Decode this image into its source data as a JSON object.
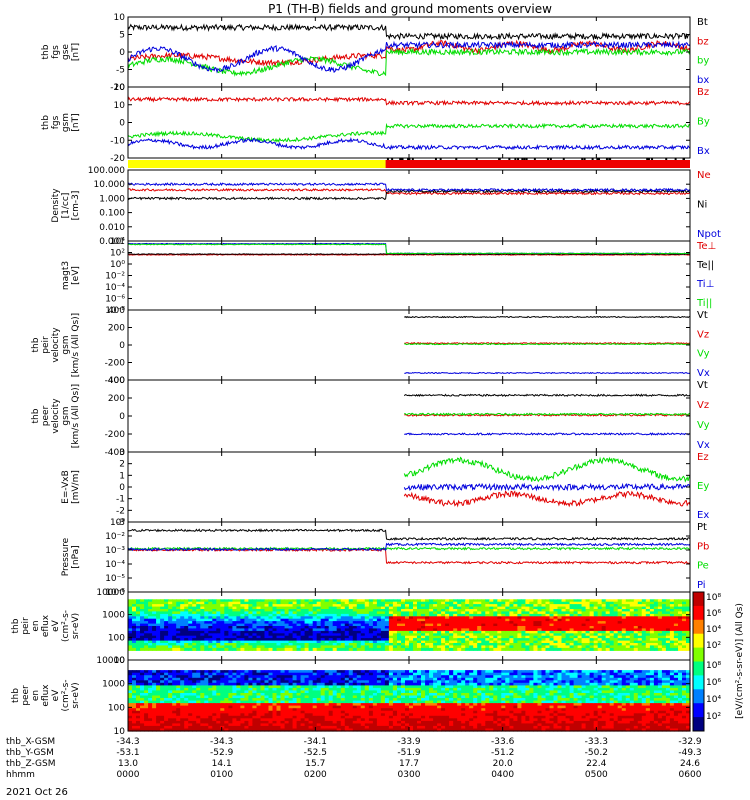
{
  "title": "P1 (TH-B) fields and ground moments overview",
  "date_label": "2021 Oct 26",
  "colors": {
    "black": "#000000",
    "red": "#e00000",
    "green": "#00dd00",
    "blue": "#0000dd",
    "yellow": "#ffff00",
    "status_red": "#ee0000"
  },
  "chart_data": [
    {
      "type": "line",
      "id": "p1",
      "ylabel_lines": [
        "thb",
        "fgs",
        "gse",
        "[nT]"
      ],
      "yticks": [
        "10",
        "5",
        "0",
        "-5",
        "-10"
      ],
      "ylim": [
        -10,
        10
      ],
      "series": [
        {
          "name": "Bt",
          "color": "black"
        },
        {
          "name": "bz",
          "color": "red"
        },
        {
          "name": "by",
          "color": "green"
        },
        {
          "name": "bx",
          "color": "blue"
        }
      ]
    },
    {
      "type": "line",
      "id": "p2",
      "ylabel_lines": [
        "thb",
        "fgs",
        "gsm",
        "[nT]"
      ],
      "yticks": [
        "20",
        "10",
        "0",
        "-10",
        "-20"
      ],
      "ylim": [
        -20,
        20
      ],
      "series": [
        {
          "name": "Bz",
          "color": "red"
        },
        {
          "name": "By",
          "color": "green"
        },
        {
          "name": "Bx",
          "color": "blue"
        }
      ]
    },
    {
      "type": "status_bar",
      "id": "mode_bar",
      "segments": [
        {
          "from_hour": 0,
          "to_hour": 2.75,
          "color": "yellow"
        },
        {
          "from_hour": 2.75,
          "to_hour": 6,
          "color": "status_red"
        }
      ]
    },
    {
      "type": "line",
      "id": "p3",
      "log": true,
      "ylabel_lines": [
        "Density",
        "[1/cc]",
        "[cm-3]"
      ],
      "yticks": [
        "100.000",
        "10.000",
        "1.000",
        "0.100",
        "0.010",
        "0.001"
      ],
      "series": [
        {
          "name": "Ne",
          "color": "red"
        },
        {
          "name": "Ni",
          "color": "black"
        },
        {
          "name": "Npot",
          "color": "blue"
        }
      ]
    },
    {
      "type": "line",
      "id": "p4",
      "log": true,
      "ylabel_lines": [
        "magt3",
        "[eV]"
      ],
      "yticks": [
        "10⁴",
        "10²",
        "10⁰",
        "10⁻²",
        "10⁻⁴",
        "10⁻⁶",
        "10⁻⁸"
      ],
      "series": [
        {
          "name": "Te⊥",
          "color": "red"
        },
        {
          "name": "Te||",
          "color": "black"
        },
        {
          "name": "Ti⊥",
          "color": "blue"
        },
        {
          "name": "Ti||",
          "color": "green"
        }
      ]
    },
    {
      "type": "line",
      "id": "p5",
      "ylabel_lines": [
        "thb",
        "peir",
        "velocity",
        "gsm",
        "[km/s (All Qs)]"
      ],
      "yticks": [
        "400",
        "200",
        "0",
        "-200",
        "-400"
      ],
      "ylim": [
        -400,
        400
      ],
      "series": [
        {
          "name": "Vt",
          "color": "black"
        },
        {
          "name": "Vz",
          "color": "red"
        },
        {
          "name": "Vy",
          "color": "green"
        },
        {
          "name": "Vx",
          "color": "blue"
        }
      ]
    },
    {
      "type": "line",
      "id": "p6",
      "ylabel_lines": [
        "thb",
        "peer",
        "velocity",
        "gsm",
        "[km/s (All Qs)]"
      ],
      "yticks": [
        "400",
        "200",
        "0",
        "-200",
        "-400"
      ],
      "ylim": [
        -400,
        400
      ],
      "series": [
        {
          "name": "Vt",
          "color": "black"
        },
        {
          "name": "Vz",
          "color": "red"
        },
        {
          "name": "Vy",
          "color": "green"
        },
        {
          "name": "Vx",
          "color": "blue"
        }
      ]
    },
    {
      "type": "line",
      "id": "p7",
      "ylabel_lines": [
        "E=-VxB",
        "[mV/m]"
      ],
      "yticks": [
        "3",
        "2",
        "1",
        "0",
        "-1",
        "-2",
        "-3"
      ],
      "ylim": [
        -3,
        3
      ],
      "series": [
        {
          "name": "Ez",
          "color": "red"
        },
        {
          "name": "Ey",
          "color": "green"
        },
        {
          "name": "Ex",
          "color": "blue"
        }
      ]
    },
    {
      "type": "line",
      "id": "p8",
      "log": true,
      "ylabel_lines": [
        "Pressure",
        "[nPa]"
      ],
      "yticks": [
        "10⁰",
        "10⁻²",
        "10⁻³",
        "10⁻⁴",
        "10⁻⁵",
        "10⁻⁶"
      ],
      "series": [
        {
          "name": "Pt",
          "color": "black"
        },
        {
          "name": "Pb",
          "color": "red"
        },
        {
          "name": "Pe",
          "color": "green"
        },
        {
          "name": "Pi",
          "color": "blue"
        }
      ]
    },
    {
      "type": "heatmap",
      "id": "p9",
      "ylabel_lines": [
        "thb",
        "peir",
        "en",
        "eflux",
        "eV",
        "(cm²-s-",
        "sr-eV)"
      ],
      "yticks": [
        "10000",
        "1000",
        "100",
        "10"
      ]
    },
    {
      "type": "heatmap",
      "id": "p10",
      "ylabel_lines": [
        "thb",
        "peer",
        "en",
        "eflux",
        "eV",
        "(cm²-s-",
        "sr-eV)"
      ],
      "yticks": [
        "10000",
        "1000",
        "100",
        "10"
      ]
    }
  ],
  "colorbar": {
    "upper_ticks": [
      "10⁸",
      "10⁶",
      "10⁴",
      "10²"
    ],
    "lower_ticks": [
      "10⁸",
      "10⁶",
      "10⁴",
      "10²"
    ],
    "side_label": "[eV/(cm²-s-sr-eV)] (All Qs)",
    "side_label_upper": "(All Qs)"
  },
  "x_axis": {
    "row_labels": [
      "thb_X-GSM",
      "thb_Y-GSM",
      "thb_Z-GSM",
      "hhmm"
    ],
    "ticks": [
      {
        "hour": 0,
        "x": "-34.3",
        "y": "-53.1",
        "z": "13.0",
        "t": "0000"
      },
      {
        "hour": 1,
        "x": "-34.3",
        "y": "-52.9",
        "z": "14.1",
        "t": "0100"
      },
      {
        "hour": 2,
        "x": "-34.1",
        "y": "-52.5",
        "z": "15.7",
        "t": "0200"
      },
      {
        "hour": 3,
        "x": "-33.9",
        "y": "-51.9",
        "z": "17.7",
        "t": "0300"
      },
      {
        "hour": 4,
        "x": "-33.6",
        "y": "-51.2",
        "z": "20.0",
        "t": "0400"
      },
      {
        "hour": 5,
        "x": "-33.3",
        "y": "-50.2",
        "z": "22.4",
        "t": "0500"
      },
      {
        "hour": 6,
        "x": "-32.9",
        "y": "-49.3",
        "z": "24.6",
        "t": "0600"
      }
    ]
  }
}
